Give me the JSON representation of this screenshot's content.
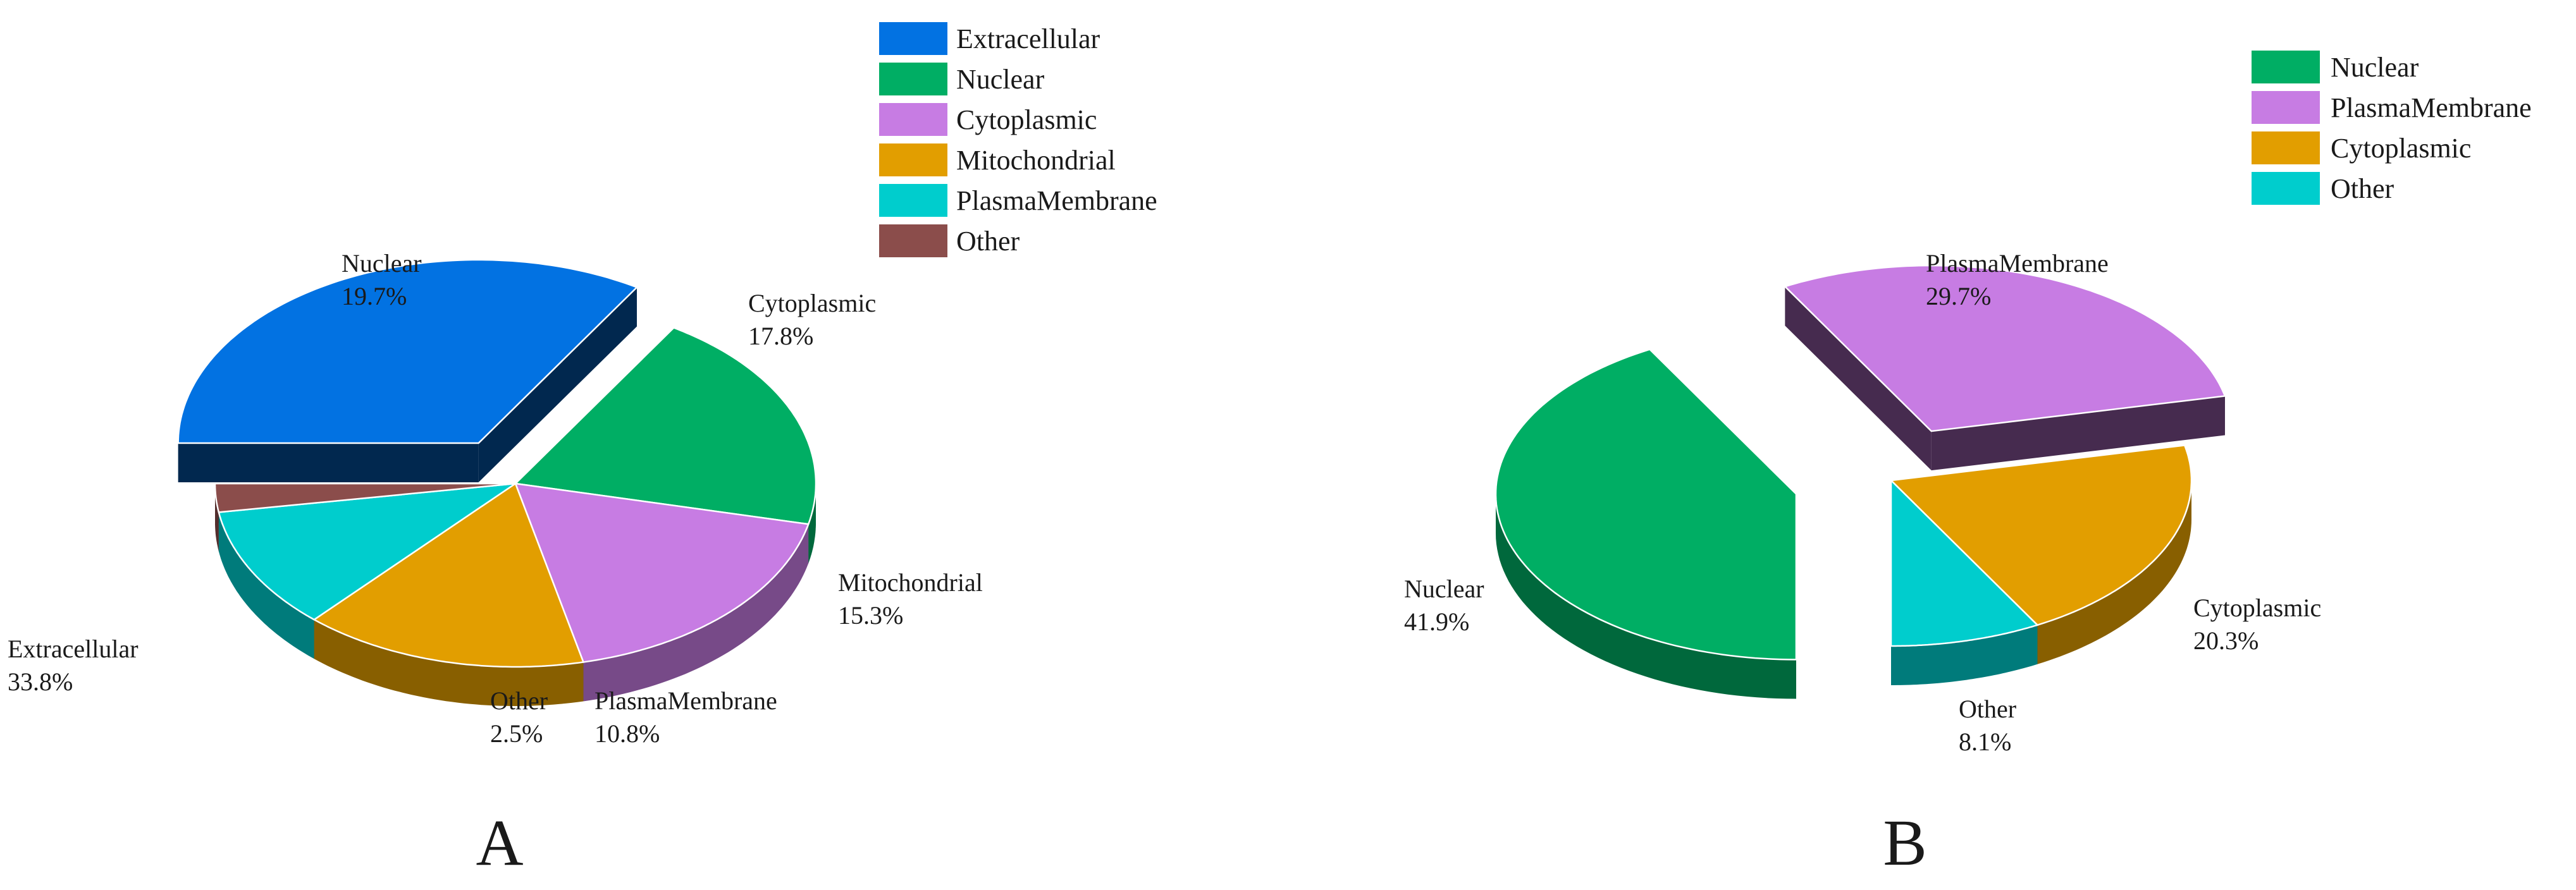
{
  "chart_data": [
    {
      "type": "pie",
      "panel_label": "A",
      "legend_placement": "top-right",
      "slices": [
        {
          "name": "Extracellular",
          "label": "Extracellular",
          "value_label": "33.8%",
          "value": 33.8,
          "color": "#0272E2",
          "exploded": true
        },
        {
          "name": "Nuclear",
          "label": "Nuclear",
          "value_label": "19.7%",
          "value": 19.7,
          "color": "#00AE64",
          "exploded": false
        },
        {
          "name": "Cytoplasmic",
          "label": "Cytoplasmic",
          "value_label": "17.8%",
          "value": 17.8,
          "color": "#C77CE3",
          "exploded": false
        },
        {
          "name": "Mitochondrial",
          "label": "Mitochondrial",
          "value_label": "15.3%",
          "value": 15.3,
          "color": "#E29E00",
          "exploded": false
        },
        {
          "name": "PlasmaMembrane",
          "label": "PlasmaMembrane",
          "value_label": "10.8%",
          "value": 10.8,
          "color": "#00CDCD",
          "exploded": false
        },
        {
          "name": "Other",
          "label": "Other",
          "value_label": "2.5%",
          "value": 2.5,
          "color": "#8B4D4B",
          "exploded": false
        }
      ]
    },
    {
      "type": "pie",
      "panel_label": "B",
      "legend_placement": "top-right",
      "slices": [
        {
          "name": "Nuclear",
          "label": "Nuclear",
          "value_label": "41.9%",
          "value": 41.9,
          "color": "#00AE64",
          "exploded": true
        },
        {
          "name": "PlasmaMembrane",
          "label": "PlasmaMembrane",
          "value_label": "29.7%",
          "value": 29.7,
          "color": "#C77CE3",
          "exploded": true
        },
        {
          "name": "Cytoplasmic",
          "label": "Cytoplasmic",
          "value_label": "20.3%",
          "value": 20.3,
          "color": "#E29E00",
          "exploded": false
        },
        {
          "name": "Other",
          "label": "Other",
          "value_label": "8.1%",
          "value": 8.1,
          "color": "#00CDCD",
          "exploded": false
        }
      ]
    }
  ]
}
